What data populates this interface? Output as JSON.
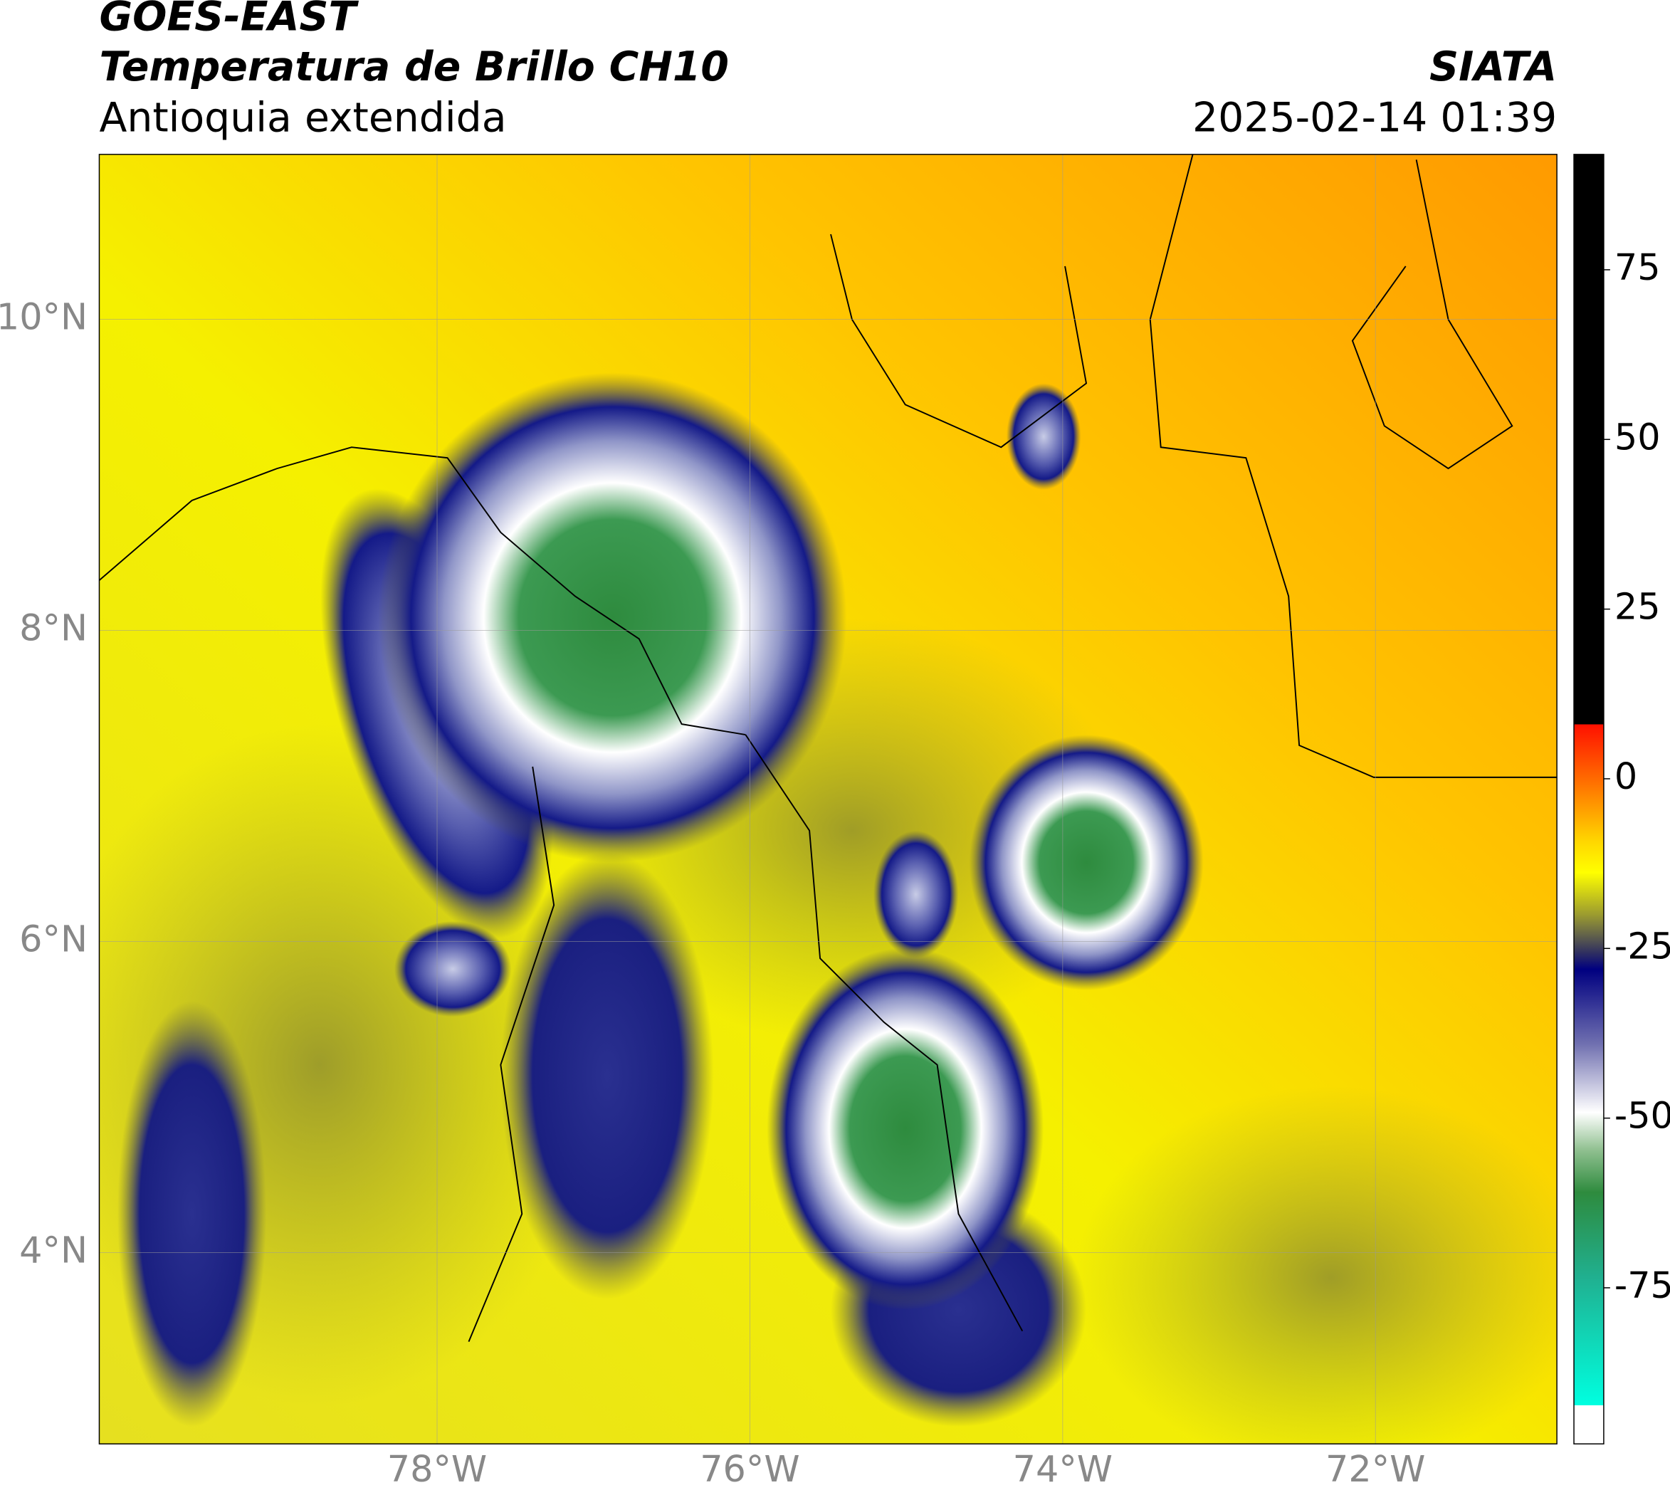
{
  "chart_data": {
    "type": "map",
    "title": "GOES-EAST",
    "subtitle": "Temperatura de Brillo CH10",
    "region": "Antioquia extendida",
    "source": "SIATA",
    "timestamp": "2025-02-14 01:39",
    "xlim": [
      -80.16,
      -70.84
    ],
    "ylim": [
      2.77,
      11.06
    ],
    "xticks": [
      {
        "value": -78,
        "label": "78°W"
      },
      {
        "value": -76,
        "label": "76°W"
      },
      {
        "value": -74,
        "label": "74°W"
      },
      {
        "value": -72,
        "label": "72°W"
      }
    ],
    "yticks": [
      {
        "value": 4,
        "label": "4°N"
      },
      {
        "value": 6,
        "label": "6°N"
      },
      {
        "value": 8,
        "label": "8°N"
      },
      {
        "value": 10,
        "label": "10°N"
      }
    ],
    "grid": true,
    "colorbar": {
      "lim": [
        -98,
        92
      ],
      "ticks": [
        -75,
        -50,
        -25,
        0,
        25,
        50,
        75
      ]
    }
  }
}
